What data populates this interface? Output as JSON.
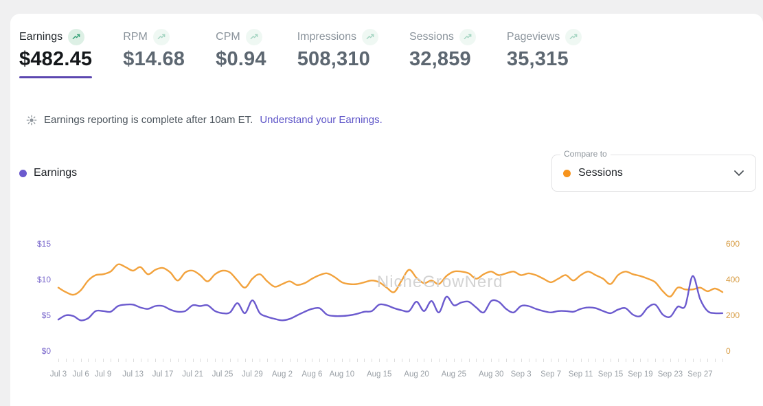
{
  "metrics": [
    {
      "label": "Earnings",
      "value": "$482.45",
      "selected": true
    },
    {
      "label": "RPM",
      "value": "$14.68",
      "selected": false
    },
    {
      "label": "CPM",
      "value": "$0.94",
      "selected": false
    },
    {
      "label": "Impressions",
      "value": "508,310",
      "selected": false
    },
    {
      "label": "Sessions",
      "value": "32,859",
      "selected": false
    },
    {
      "label": "Pageviews",
      "value": "35,315",
      "selected": false
    }
  ],
  "notice": {
    "text": "Earnings reporting is complete after 10am ET.",
    "link_text": "Understand your Earnings."
  },
  "legend": {
    "primary_label": "Earnings",
    "compare_label": "Compare to",
    "compare_value": "Sessions"
  },
  "colors": {
    "earnings_line": "#6b5ace",
    "sessions_line": "#f2a23c",
    "earnings_dot": "#6b5ace",
    "sessions_dot": "#f7941d",
    "active_underline": "#5c47b0",
    "left_axis_text": "#7a68cc",
    "right_axis_text": "#d79c43",
    "trend_icon_bg": "#ddf0e5",
    "trend_icon_arrow": "#3aa37a"
  },
  "chart_data": {
    "type": "line",
    "title": "",
    "watermark": "NicheGrowNerd",
    "num_points": 90,
    "x_start": "Jul 3",
    "x_end": "Sep 30",
    "grid": false,
    "legend_position": "top",
    "left_axis": {
      "label": "Earnings ($)",
      "ticks": [
        "$0",
        "$5",
        "$10",
        "$15"
      ],
      "range": [
        0,
        15
      ]
    },
    "right_axis": {
      "label": "Sessions",
      "ticks": [
        "0",
        "200",
        "400",
        "600"
      ],
      "range": [
        0,
        600
      ]
    },
    "x_tick_labels": [
      {
        "label": "Jul 3",
        "index": 0
      },
      {
        "label": "Jul 6",
        "index": 3
      },
      {
        "label": "Jul 9",
        "index": 6
      },
      {
        "label": "Jul 13",
        "index": 10
      },
      {
        "label": "Jul 17",
        "index": 14
      },
      {
        "label": "Jul 21",
        "index": 18
      },
      {
        "label": "Jul 25",
        "index": 22
      },
      {
        "label": "Jul 29",
        "index": 26
      },
      {
        "label": "Aug 2",
        "index": 30
      },
      {
        "label": "Aug 6",
        "index": 34
      },
      {
        "label": "Aug 10",
        "index": 38
      },
      {
        "label": "Aug 15",
        "index": 43
      },
      {
        "label": "Aug 20",
        "index": 48
      },
      {
        "label": "Aug 25",
        "index": 53
      },
      {
        "label": "Aug 30",
        "index": 58
      },
      {
        "label": "Sep 3",
        "index": 62
      },
      {
        "label": "Sep 7",
        "index": 66
      },
      {
        "label": "Sep 11",
        "index": 70
      },
      {
        "label": "Sep 15",
        "index": 74
      },
      {
        "label": "Sep 19",
        "index": 78
      },
      {
        "label": "Sep 23",
        "index": 82
      },
      {
        "label": "Sep 27",
        "index": 86
      }
    ],
    "series": [
      {
        "name": "Sessions",
        "axis": "right",
        "color": "#f2a23c",
        "values": [
          355,
          330,
          315,
          340,
          395,
          425,
          430,
          445,
          485,
          470,
          450,
          470,
          430,
          455,
          465,
          440,
          395,
          440,
          450,
          425,
          390,
          430,
          450,
          440,
          395,
          355,
          405,
          430,
          390,
          360,
          375,
          390,
          370,
          380,
          405,
          425,
          435,
          415,
          385,
          375,
          375,
          385,
          395,
          385,
          355,
          330,
          395,
          455,
          410,
          380,
          395,
          375,
          420,
          445,
          445,
          435,
          405,
          430,
          445,
          425,
          435,
          445,
          425,
          435,
          425,
          405,
          385,
          405,
          425,
          395,
          425,
          445,
          425,
          405,
          375,
          425,
          445,
          430,
          420,
          405,
          385,
          335,
          305,
          355,
          345,
          345,
          355,
          335,
          350,
          330
        ]
      },
      {
        "name": "Earnings",
        "axis": "left",
        "color": "#6b5ace",
        "values": [
          4.4,
          5.0,
          4.9,
          4.3,
          4.6,
          5.6,
          5.6,
          5.5,
          6.3,
          6.5,
          6.5,
          6.1,
          5.9,
          6.3,
          6.3,
          5.8,
          5.5,
          5.6,
          6.4,
          6.3,
          6.4,
          5.6,
          5.3,
          5.4,
          6.7,
          5.3,
          7.1,
          5.3,
          4.8,
          4.5,
          4.3,
          4.5,
          5.0,
          5.5,
          5.9,
          6.0,
          5.1,
          4.9,
          4.9,
          5.0,
          5.2,
          5.5,
          5.6,
          6.5,
          6.4,
          6.0,
          5.7,
          5.6,
          6.9,
          5.6,
          7.0,
          5.4,
          7.6,
          6.4,
          6.8,
          6.9,
          6.1,
          5.4,
          7.0,
          6.9,
          5.9,
          5.4,
          6.3,
          6.3,
          5.9,
          5.6,
          5.4,
          5.6,
          5.6,
          5.5,
          5.9,
          6.1,
          6.0,
          5.6,
          5.3,
          5.8,
          6.0,
          5.1,
          4.9,
          6.1,
          6.5,
          5.1,
          4.8,
          6.2,
          6.3,
          10.5,
          7.3,
          5.6,
          5.3,
          5.3
        ]
      }
    ]
  }
}
